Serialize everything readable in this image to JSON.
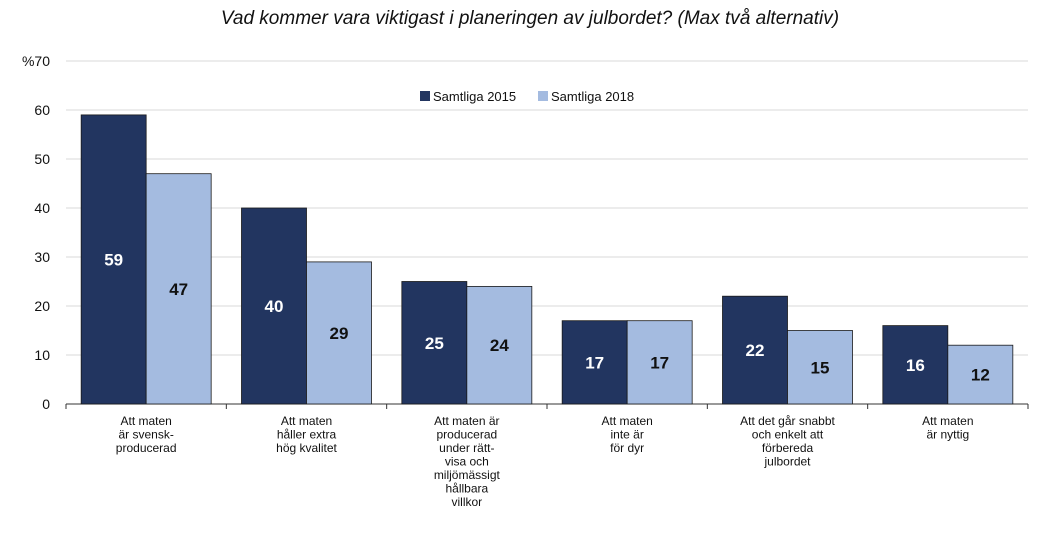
{
  "chart_data": {
    "type": "bar",
    "title": "Vad kommer vara viktigast i planeringen av julbordet? (Max två alternativ)",
    "xlabel": "",
    "ylabel": "",
    "ylim": [
      0,
      70
    ],
    "y_ticks": [
      "0",
      "10",
      "20",
      "30",
      "40",
      "50",
      "60",
      "%70"
    ],
    "grid": true,
    "legend_position": "top-center",
    "categories": [
      [
        "Att maten",
        "är svensk-",
        "producerad"
      ],
      [
        "Att maten",
        "håller extra",
        "hög kvalitet"
      ],
      [
        "Att maten är",
        "producerad",
        "under rätt-",
        "visa och",
        "miljömässigt",
        "hållbara",
        "villkor"
      ],
      [
        "Att maten",
        "inte är",
        "för dyr"
      ],
      [
        "Att det går snabbt",
        "och enkelt att",
        "förbereda",
        "julbordet"
      ],
      [
        "Att maten",
        "är nyttig"
      ]
    ],
    "series": [
      {
        "name": "Samtliga 2015",
        "color": "#223560",
        "label_color": "#ffffff",
        "values": [
          59,
          40,
          25,
          17,
          22,
          16
        ]
      },
      {
        "name": "Samtliga 2018",
        "color": "#a4bbe0",
        "label_color": "#111111",
        "values": [
          47,
          29,
          24,
          17,
          15,
          12
        ]
      }
    ]
  }
}
